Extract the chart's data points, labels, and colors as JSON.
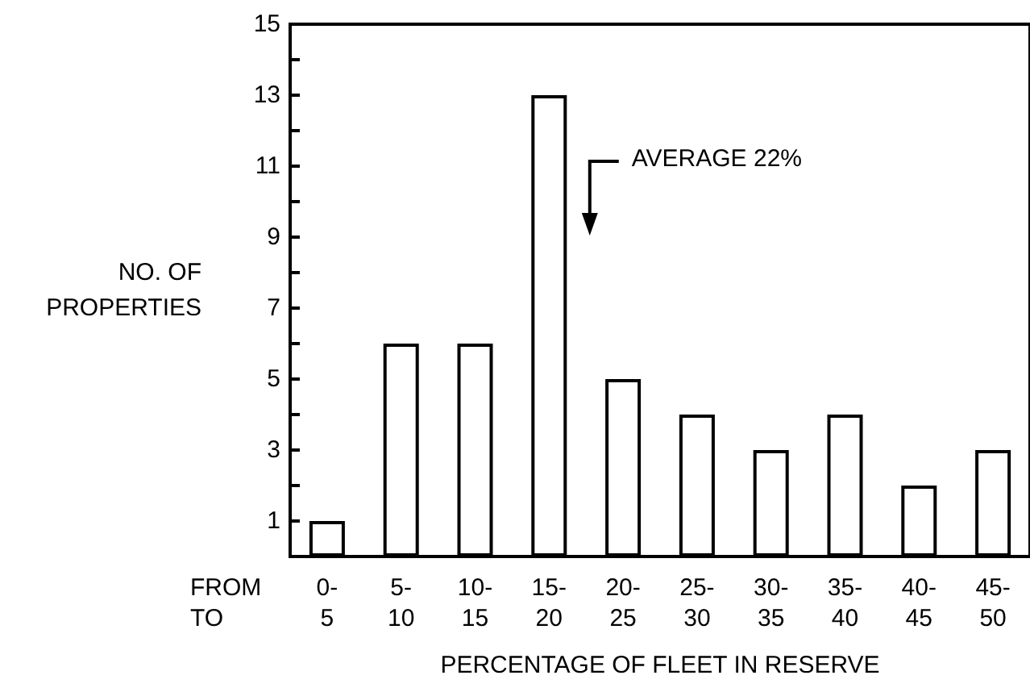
{
  "chart_data": {
    "type": "bar",
    "categories": [
      "0-\n5",
      "5-\n10",
      "10-\n15",
      "15-\n20",
      "20-\n25",
      "25-\n30",
      "30-\n35",
      "35-\n40",
      "40-\n45",
      "45-\n50"
    ],
    "values": [
      1,
      6,
      6,
      13,
      5,
      4,
      3,
      4,
      2,
      3
    ],
    "color": "#ffffff",
    "ylabel": "NO. OF\nPROPERTIES",
    "xlabel": "PERCENTAGE OF FLEET IN RESERVE",
    "ylim": [
      0,
      15
    ],
    "yticks": [
      1,
      {
        "value": 2,
        "label": null
      },
      3,
      {
        "value": 4,
        "label": null
      },
      5,
      {
        "value": 6,
        "label": null
      },
      7,
      {
        "value": 8,
        "label": null
      },
      9,
      {
        "value": 10,
        "label": null
      },
      11,
      {
        "value": 12,
        "label": null
      },
      13,
      {
        "value": 14,
        "label": null
      },
      15
    ],
    "annotations": [
      "AVERAGE 22%",
      "FROM",
      "TO"
    ]
  }
}
